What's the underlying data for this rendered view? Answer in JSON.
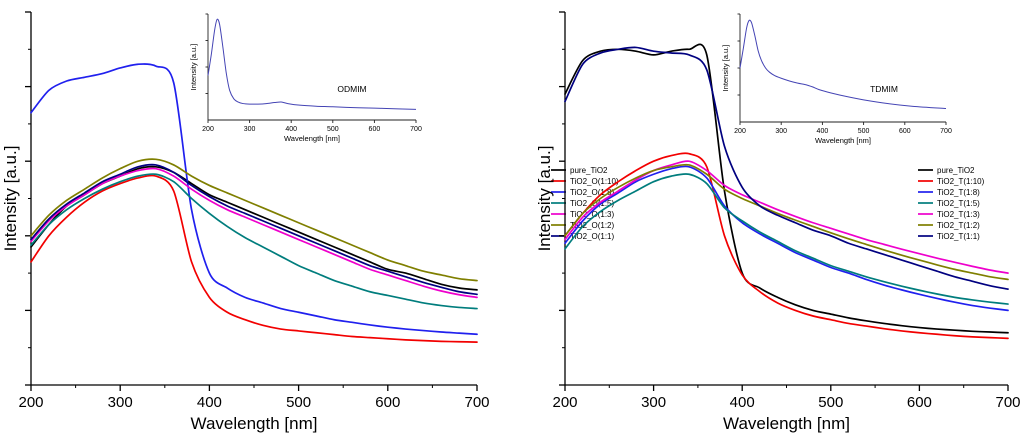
{
  "chart_data": [
    {
      "type": "line",
      "title": "",
      "xlabel": "Wavelength [nm]",
      "ylabel": "Intensity [a.u.]",
      "xlim": [
        200,
        700
      ],
      "ylim": [
        0,
        1
      ],
      "x_ticks": [
        200,
        300,
        400,
        500,
        600,
        700
      ],
      "grid": false,
      "legend_position": "right-center",
      "x": [
        200,
        220,
        240,
        260,
        280,
        300,
        320,
        340,
        360,
        380,
        400,
        420,
        440,
        460,
        480,
        500,
        520,
        540,
        560,
        580,
        600,
        620,
        640,
        660,
        680,
        700
      ],
      "series": [
        {
          "name": "pure_TiO2",
          "color": "#000000",
          "values": [
            0.37,
            0.43,
            0.48,
            0.51,
            0.54,
            0.56,
            0.58,
            0.585,
            0.57,
            0.54,
            0.51,
            0.49,
            0.47,
            0.45,
            0.43,
            0.41,
            0.39,
            0.37,
            0.35,
            0.33,
            0.31,
            0.3,
            0.285,
            0.27,
            0.26,
            0.255
          ]
        },
        {
          "name": "TiO2_O(1:10)",
          "color": "#f20000",
          "values": [
            0.33,
            0.4,
            0.45,
            0.49,
            0.52,
            0.54,
            0.555,
            0.56,
            0.52,
            0.33,
            0.235,
            0.195,
            0.175,
            0.16,
            0.15,
            0.145,
            0.14,
            0.135,
            0.13,
            0.127,
            0.124,
            0.121,
            0.119,
            0.117,
            0.116,
            0.115
          ]
        },
        {
          "name": "TiO2_O(1:8)",
          "color": "#2020ee",
          "values": [
            0.73,
            0.79,
            0.815,
            0.825,
            0.835,
            0.85,
            0.86,
            0.855,
            0.81,
            0.47,
            0.3,
            0.26,
            0.235,
            0.22,
            0.205,
            0.195,
            0.185,
            0.175,
            0.168,
            0.161,
            0.155,
            0.15,
            0.146,
            0.142,
            0.139,
            0.136
          ]
        },
        {
          "name": "TiO2_O(1:5)",
          "color": "#007d7d",
          "values": [
            0.375,
            0.43,
            0.47,
            0.5,
            0.525,
            0.545,
            0.56,
            0.565,
            0.545,
            0.5,
            0.46,
            0.425,
            0.395,
            0.37,
            0.345,
            0.32,
            0.3,
            0.28,
            0.265,
            0.25,
            0.24,
            0.23,
            0.22,
            0.213,
            0.208,
            0.205
          ]
        },
        {
          "name": "TiO2_O(1:3)",
          "color": "#ee00cc",
          "values": [
            0.385,
            0.44,
            0.48,
            0.51,
            0.54,
            0.56,
            0.575,
            0.58,
            0.56,
            0.525,
            0.495,
            0.47,
            0.45,
            0.43,
            0.41,
            0.39,
            0.37,
            0.35,
            0.33,
            0.31,
            0.295,
            0.28,
            0.265,
            0.252,
            0.242,
            0.235
          ]
        },
        {
          "name": "TiO2_O(1:2)",
          "color": "#7f7f00",
          "values": [
            0.4,
            0.455,
            0.495,
            0.525,
            0.555,
            0.58,
            0.6,
            0.605,
            0.59,
            0.56,
            0.535,
            0.515,
            0.495,
            0.475,
            0.455,
            0.435,
            0.415,
            0.395,
            0.375,
            0.355,
            0.335,
            0.32,
            0.305,
            0.295,
            0.285,
            0.28
          ]
        },
        {
          "name": "TiO2_O(1:1)",
          "color": "#000080",
          "values": [
            0.39,
            0.445,
            0.485,
            0.515,
            0.545,
            0.565,
            0.585,
            0.59,
            0.57,
            0.535,
            0.505,
            0.48,
            0.46,
            0.44,
            0.42,
            0.4,
            0.38,
            0.36,
            0.34,
            0.32,
            0.305,
            0.29,
            0.275,
            0.262,
            0.25,
            0.243
          ]
        }
      ],
      "inset": {
        "label": "ODMIM",
        "xlabel": "Wavelength [nm]",
        "ylabel": "Intensity [a.u.]",
        "xlim": [
          200,
          700
        ],
        "ylim": [
          0,
          1
        ],
        "x_ticks": [
          200,
          300,
          400,
          500,
          600,
          700
        ],
        "color": "#4444b4",
        "x": [
          200,
          208,
          216,
          222,
          228,
          236,
          244,
          252,
          262,
          272,
          284,
          300,
          320,
          340,
          360,
          376,
          392,
          420,
          460,
          500,
          560,
          620,
          700
        ],
        "values": [
          0.42,
          0.62,
          0.85,
          0.95,
          0.9,
          0.68,
          0.44,
          0.28,
          0.2,
          0.17,
          0.155,
          0.15,
          0.15,
          0.155,
          0.165,
          0.17,
          0.155,
          0.14,
          0.13,
          0.125,
          0.115,
          0.11,
          0.1
        ]
      }
    },
    {
      "type": "line",
      "title": "",
      "xlabel": "Wavelength [nm]",
      "ylabel": "Intensity [a.u.]",
      "xlim": [
        200,
        700
      ],
      "ylim": [
        0,
        1
      ],
      "x_ticks": [
        200,
        300,
        400,
        500,
        600,
        700
      ],
      "grid": false,
      "legend_position": "right-center",
      "x": [
        200,
        220,
        240,
        260,
        280,
        300,
        320,
        340,
        360,
        380,
        400,
        420,
        440,
        460,
        480,
        500,
        520,
        540,
        560,
        580,
        600,
        620,
        640,
        660,
        680,
        700
      ],
      "series": [
        {
          "name": "pure_TiO2",
          "color": "#000000",
          "values": [
            0.78,
            0.87,
            0.895,
            0.9,
            0.895,
            0.885,
            0.895,
            0.9,
            0.885,
            0.52,
            0.3,
            0.26,
            0.235,
            0.215,
            0.2,
            0.19,
            0.18,
            0.172,
            0.165,
            0.159,
            0.154,
            0.15,
            0.147,
            0.144,
            0.142,
            0.14
          ]
        },
        {
          "name": "TiO2_T(1:10)",
          "color": "#f20000",
          "values": [
            0.4,
            0.46,
            0.51,
            0.545,
            0.575,
            0.6,
            0.615,
            0.62,
            0.585,
            0.4,
            0.295,
            0.25,
            0.22,
            0.2,
            0.185,
            0.175,
            0.165,
            0.158,
            0.151,
            0.145,
            0.14,
            0.136,
            0.132,
            0.129,
            0.127,
            0.125
          ]
        },
        {
          "name": "TiO2_T(1:8)",
          "color": "#2020ee",
          "values": [
            0.38,
            0.44,
            0.485,
            0.515,
            0.545,
            0.565,
            0.58,
            0.585,
            0.555,
            0.48,
            0.435,
            0.405,
            0.38,
            0.355,
            0.335,
            0.315,
            0.3,
            0.283,
            0.268,
            0.255,
            0.243,
            0.232,
            0.222,
            0.213,
            0.206,
            0.2
          ]
        },
        {
          "name": "TiO2_T(1:5)",
          "color": "#007d7d",
          "values": [
            0.365,
            0.425,
            0.465,
            0.495,
            0.52,
            0.545,
            0.56,
            0.565,
            0.54,
            0.475,
            0.44,
            0.41,
            0.385,
            0.36,
            0.34,
            0.32,
            0.305,
            0.29,
            0.277,
            0.265,
            0.254,
            0.244,
            0.235,
            0.228,
            0.222,
            0.217
          ]
        },
        {
          "name": "TiO2_T(1:3)",
          "color": "#ee00cc",
          "values": [
            0.39,
            0.45,
            0.49,
            0.52,
            0.55,
            0.575,
            0.59,
            0.6,
            0.575,
            0.535,
            0.51,
            0.49,
            0.47,
            0.452,
            0.435,
            0.42,
            0.405,
            0.39,
            0.377,
            0.364,
            0.352,
            0.34,
            0.329,
            0.318,
            0.308,
            0.3
          ]
        },
        {
          "name": "TiO2_T(1:2)",
          "color": "#7f7f00",
          "values": [
            0.4,
            0.46,
            0.5,
            0.53,
            0.555,
            0.575,
            0.585,
            0.59,
            0.565,
            0.525,
            0.5,
            0.48,
            0.46,
            0.442,
            0.425,
            0.408,
            0.392,
            0.377,
            0.362,
            0.348,
            0.335,
            0.322,
            0.31,
            0.3,
            0.29,
            0.283
          ]
        },
        {
          "name": "TiO2_T(1:1)",
          "color": "#000080",
          "values": [
            0.76,
            0.86,
            0.89,
            0.9,
            0.905,
            0.895,
            0.89,
            0.885,
            0.845,
            0.64,
            0.53,
            0.48,
            0.455,
            0.435,
            0.415,
            0.4,
            0.38,
            0.365,
            0.35,
            0.335,
            0.32,
            0.305,
            0.29,
            0.278,
            0.266,
            0.257
          ]
        }
      ],
      "inset": {
        "label": "TDMIM",
        "xlabel": "Wavelength [nm]",
        "ylabel": "Intensity [a.u.]",
        "xlim": [
          200,
          700
        ],
        "ylim": [
          0,
          1
        ],
        "x_ticks": [
          200,
          300,
          400,
          500,
          600,
          700
        ],
        "color": "#4444b4",
        "x": [
          200,
          208,
          216,
          222,
          228,
          236,
          244,
          252,
          262,
          272,
          284,
          300,
          320,
          340,
          360,
          376,
          392,
          420,
          460,
          500,
          560,
          620,
          700
        ],
        "values": [
          0.5,
          0.68,
          0.87,
          0.94,
          0.92,
          0.8,
          0.66,
          0.57,
          0.5,
          0.46,
          0.43,
          0.405,
          0.38,
          0.36,
          0.345,
          0.325,
          0.3,
          0.27,
          0.235,
          0.205,
          0.17,
          0.145,
          0.125
        ]
      }
    }
  ]
}
